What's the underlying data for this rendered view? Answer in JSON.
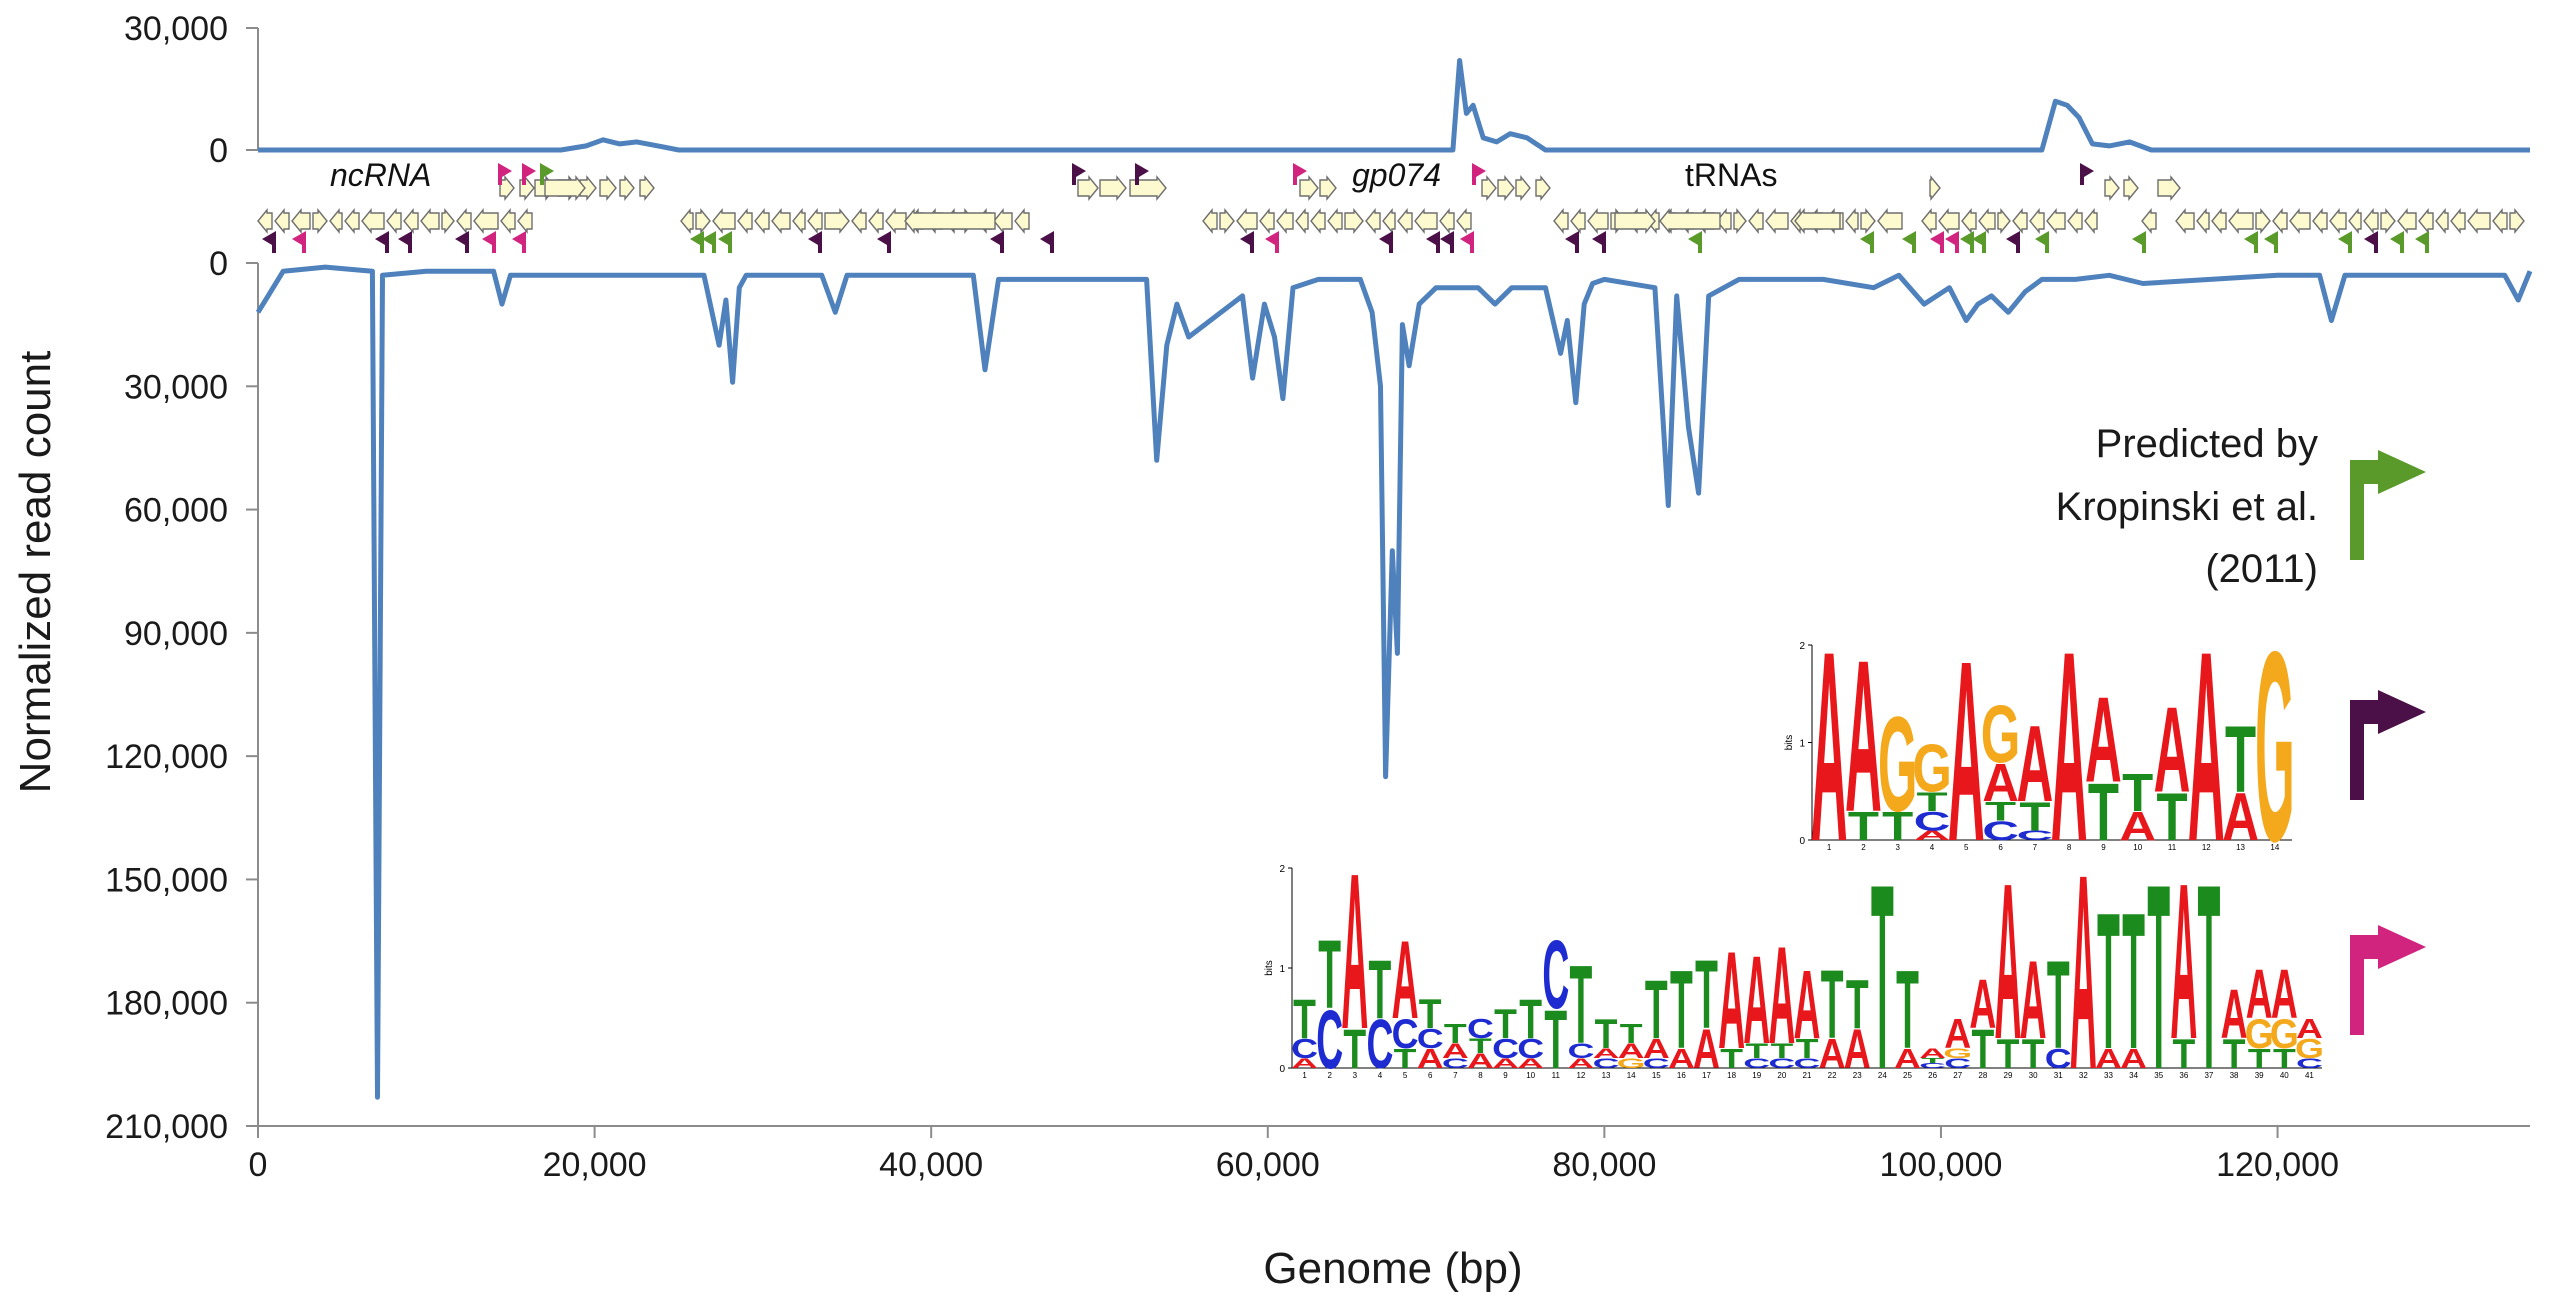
{
  "chart_data": {
    "type": "line",
    "xlabel": "Genome (bp)",
    "ylabel": "Normalized read count",
    "xlim": [
      0,
      135000
    ],
    "x_ticks": [
      0,
      20000,
      40000,
      60000,
      80000,
      100000,
      120000
    ],
    "x_tick_labels": [
      "0",
      "20,000",
      "40,000",
      "60,000",
      "80,000",
      "100,000",
      "120,000"
    ],
    "top_track": {
      "name": "forward strand",
      "ylim": [
        0,
        30000
      ],
      "y_ticks": [
        0,
        30000
      ],
      "y_tick_labels": [
        "0",
        "30,000"
      ],
      "x": [
        0,
        18000,
        19500,
        20500,
        21500,
        22500,
        24000,
        25000,
        71000,
        71400,
        71800,
        72200,
        72800,
        73600,
        74400,
        75400,
        76500,
        106000,
        106800,
        107500,
        108200,
        109000,
        110000,
        111200,
        112500,
        135000
      ],
      "values": [
        0,
        0,
        1000,
        2500,
        1500,
        2000,
        800,
        0,
        0,
        22000,
        9000,
        11000,
        3000,
        2000,
        4000,
        3000,
        0,
        0,
        12000,
        11000,
        8000,
        1500,
        1000,
        2000,
        0,
        0
      ]
    },
    "bottom_track": {
      "name": "reverse strand",
      "ylim": [
        0,
        210000
      ],
      "y_ticks": [
        0,
        30000,
        60000,
        90000,
        120000,
        150000,
        180000,
        210000
      ],
      "y_tick_labels": [
        "0",
        "30,000",
        "60,000",
        "90,000",
        "120,000",
        "150,000",
        "180,000",
        "210,000"
      ],
      "x": [
        0,
        600,
        1500,
        4000,
        6800,
        7100,
        7400,
        10000,
        14000,
        14500,
        15000,
        26500,
        27400,
        27800,
        28200,
        28600,
        29000,
        33500,
        34300,
        35000,
        42500,
        43200,
        44000,
        52800,
        53400,
        54000,
        54600,
        55300,
        58500,
        59100,
        59800,
        60400,
        60900,
        61500,
        63000,
        65500,
        66200,
        66700,
        67000,
        67400,
        67700,
        68000,
        68400,
        69000,
        70000,
        72500,
        73500,
        74500,
        76500,
        77400,
        77800,
        78300,
        78800,
        79300,
        80000,
        83000,
        83800,
        84300,
        85000,
        85600,
        86200,
        88000,
        93000,
        96000,
        97500,
        99000,
        100500,
        101500,
        102200,
        103000,
        104000,
        105000,
        106000,
        108000,
        110000,
        112000,
        120000,
        122500,
        123200,
        124000,
        126000,
        130000,
        133500,
        134300,
        135000
      ],
      "values": [
        12000,
        8000,
        2000,
        1000,
        2000,
        203000,
        3000,
        2000,
        2000,
        10000,
        3000,
        3000,
        20000,
        9000,
        29000,
        6000,
        3000,
        3000,
        12000,
        3000,
        3000,
        26000,
        4000,
        4000,
        48000,
        20000,
        10000,
        18000,
        8000,
        28000,
        10000,
        18000,
        33000,
        6000,
        4000,
        4000,
        12000,
        30000,
        125000,
        70000,
        95000,
        15000,
        25000,
        10000,
        6000,
        6000,
        10000,
        6000,
        6000,
        22000,
        14000,
        34000,
        10000,
        5000,
        4000,
        6000,
        59000,
        8000,
        40000,
        56000,
        8000,
        4000,
        4000,
        6000,
        3000,
        10000,
        6000,
        14000,
        10000,
        8000,
        12000,
        7000,
        4000,
        4000,
        3000,
        5000,
        3000,
        3000,
        14000,
        3000,
        3000,
        3000,
        3000,
        9000,
        2000
      ]
    },
    "line_color": "#4f81bd",
    "annotations": [
      "ncRNA",
      "gp074",
      "tRNAs"
    ]
  },
  "legend": {
    "green_label_lines": [
      "Predicted by",
      "Kropinski et al.",
      "(2011)"
    ],
    "green_color": "#5a9a2a",
    "purple_color": "#4b1048",
    "magenta_color": "#d1247f"
  },
  "motifs": {
    "purple": {
      "y_axis_label": "bits",
      "y_tick_labels": [
        "0",
        "1",
        "2"
      ],
      "positions": [
        "1",
        "2",
        "3",
        "4",
        "5",
        "6",
        "7",
        "8",
        "9",
        "10",
        "11",
        "12",
        "13",
        "14"
      ],
      "columns": [
        [
          [
            "A",
            2.0
          ]
        ],
        [
          [
            "A",
            1.6
          ],
          [
            "T",
            0.3
          ]
        ],
        [
          [
            "G",
            1.0
          ],
          [
            "T",
            0.3
          ]
        ],
        [
          [
            "G",
            0.5
          ],
          [
            "C",
            0.2
          ],
          [
            "T",
            0.2
          ],
          [
            "A",
            0.1
          ]
        ],
        [
          [
            "A",
            1.9
          ]
        ],
        [
          [
            "G",
            0.6
          ],
          [
            "A",
            0.4
          ],
          [
            "C",
            0.2
          ],
          [
            "T",
            0.2
          ]
        ],
        [
          [
            "A",
            0.8
          ],
          [
            "T",
            0.3
          ],
          [
            "C",
            0.1
          ]
        ],
        [
          [
            "A",
            2.0
          ]
        ],
        [
          [
            "A",
            0.9
          ],
          [
            "T",
            0.6
          ]
        ],
        [
          [
            "T",
            0.4
          ],
          [
            "A",
            0.3
          ]
        ],
        [
          [
            "A",
            0.9
          ],
          [
            "T",
            0.5
          ]
        ],
        [
          [
            "A",
            2.0
          ]
        ],
        [
          [
            "T",
            0.7
          ],
          [
            "A",
            0.5
          ]
        ],
        [
          [
            "G",
            2.0
          ]
        ]
      ]
    },
    "magenta": {
      "y_axis_label": "bits",
      "y_tick_labels": [
        "0",
        "1",
        "2"
      ],
      "positions": [
        "1",
        "2",
        "3",
        "4",
        "5",
        "6",
        "7",
        "8",
        "9",
        "10",
        "11",
        "12",
        "13",
        "14",
        "15",
        "16",
        "17",
        "18",
        "19",
        "20",
        "21",
        "22",
        "23",
        "24",
        "25",
        "26",
        "27",
        "28",
        "29",
        "30",
        "31",
        "32",
        "33",
        "34",
        "35",
        "36",
        "37",
        "38",
        "39",
        "40",
        "41"
      ],
      "columns": [
        [
          [
            "T",
            0.4
          ],
          [
            "C",
            0.2
          ],
          [
            "A",
            0.1
          ]
        ],
        [
          [
            "T",
            0.7
          ],
          [
            "C",
            0.6
          ]
        ],
        [
          [
            "A",
            1.6
          ],
          [
            "T",
            0.4
          ]
        ],
        [
          [
            "T",
            0.6
          ],
          [
            "C",
            0.5
          ]
        ],
        [
          [
            "A",
            0.8
          ],
          [
            "C",
            0.3
          ],
          [
            "T",
            0.2
          ]
        ],
        [
          [
            "T",
            0.3
          ],
          [
            "A",
            0.2
          ],
          [
            "C",
            0.2
          ]
        ],
        [
          [
            "T",
            0.2
          ],
          [
            "A",
            0.15
          ],
          [
            "C",
            0.1
          ]
        ],
        [
          [
            "C",
            0.2
          ],
          [
            "A",
            0.15
          ],
          [
            "T",
            0.15
          ]
        ],
        [
          [
            "T",
            0.3
          ],
          [
            "C",
            0.2
          ],
          [
            "A",
            0.1
          ]
        ],
        [
          [
            "T",
            0.4
          ],
          [
            "C",
            0.2
          ],
          [
            "A",
            0.1
          ]
        ],
        [
          [
            "C",
            0.7
          ],
          [
            "T",
            0.6
          ]
        ],
        [
          [
            "T",
            0.8
          ],
          [
            "C",
            0.15
          ],
          [
            "A",
            0.1
          ]
        ],
        [
          [
            "T",
            0.3
          ],
          [
            "C",
            0.1
          ],
          [
            "A",
            0.1
          ]
        ],
        [
          [
            "T",
            0.2
          ],
          [
            "A",
            0.15
          ],
          [
            "G",
            0.1
          ]
        ],
        [
          [
            "T",
            0.6
          ],
          [
            "A",
            0.2
          ],
          [
            "C",
            0.1
          ]
        ],
        [
          [
            "T",
            0.8
          ],
          [
            "A",
            0.2
          ]
        ],
        [
          [
            "T",
            0.7
          ],
          [
            "A",
            0.4
          ]
        ],
        [
          [
            "A",
            1.0
          ],
          [
            "T",
            0.2
          ]
        ],
        [
          [
            "A",
            0.9
          ],
          [
            "T",
            0.15
          ],
          [
            "C",
            0.1
          ]
        ],
        [
          [
            "A",
            1.0
          ],
          [
            "T",
            0.15
          ],
          [
            "C",
            0.1
          ]
        ],
        [
          [
            "A",
            0.7
          ],
          [
            "T",
            0.2
          ],
          [
            "C",
            0.1
          ]
        ],
        [
          [
            "T",
            0.7
          ],
          [
            "A",
            0.3
          ]
        ],
        [
          [
            "T",
            0.5
          ],
          [
            "A",
            0.4
          ]
        ],
        [
          [
            "T",
            1.9
          ]
        ],
        [
          [
            "T",
            0.8
          ],
          [
            "A",
            0.2
          ]
        ],
        [
          [
            "A",
            0.1
          ],
          [
            "C",
            0.05
          ],
          [
            "T",
            0.05
          ]
        ],
        [
          [
            "A",
            0.3
          ],
          [
            "C",
            0.1
          ],
          [
            "G",
            0.1
          ]
        ],
        [
          [
            "A",
            0.5
          ],
          [
            "T",
            0.4
          ]
        ],
        [
          [
            "A",
            1.6
          ],
          [
            "T",
            0.3
          ]
        ],
        [
          [
            "A",
            0.8
          ],
          [
            "T",
            0.3
          ]
        ],
        [
          [
            "T",
            0.9
          ],
          [
            "C",
            0.2
          ]
        ],
        [
          [
            "A",
            2.0
          ]
        ],
        [
          [
            "T",
            1.4
          ],
          [
            "A",
            0.2
          ]
        ],
        [
          [
            "T",
            1.4
          ],
          [
            "A",
            0.2
          ]
        ],
        [
          [
            "T",
            1.9
          ]
        ],
        [
          [
            "A",
            1.6
          ],
          [
            "T",
            0.3
          ]
        ],
        [
          [
            "T",
            1.9
          ]
        ],
        [
          [
            "A",
            0.5
          ],
          [
            "T",
            0.3
          ]
        ],
        [
          [
            "A",
            0.5
          ],
          [
            "G",
            0.3
          ],
          [
            "T",
            0.2
          ]
        ],
        [
          [
            "A",
            0.5
          ],
          [
            "G",
            0.3
          ],
          [
            "T",
            0.2
          ]
        ],
        [
          [
            "G",
            0.2
          ],
          [
            "A",
            0.2
          ],
          [
            "C",
            0.1
          ]
        ]
      ]
    }
  }
}
